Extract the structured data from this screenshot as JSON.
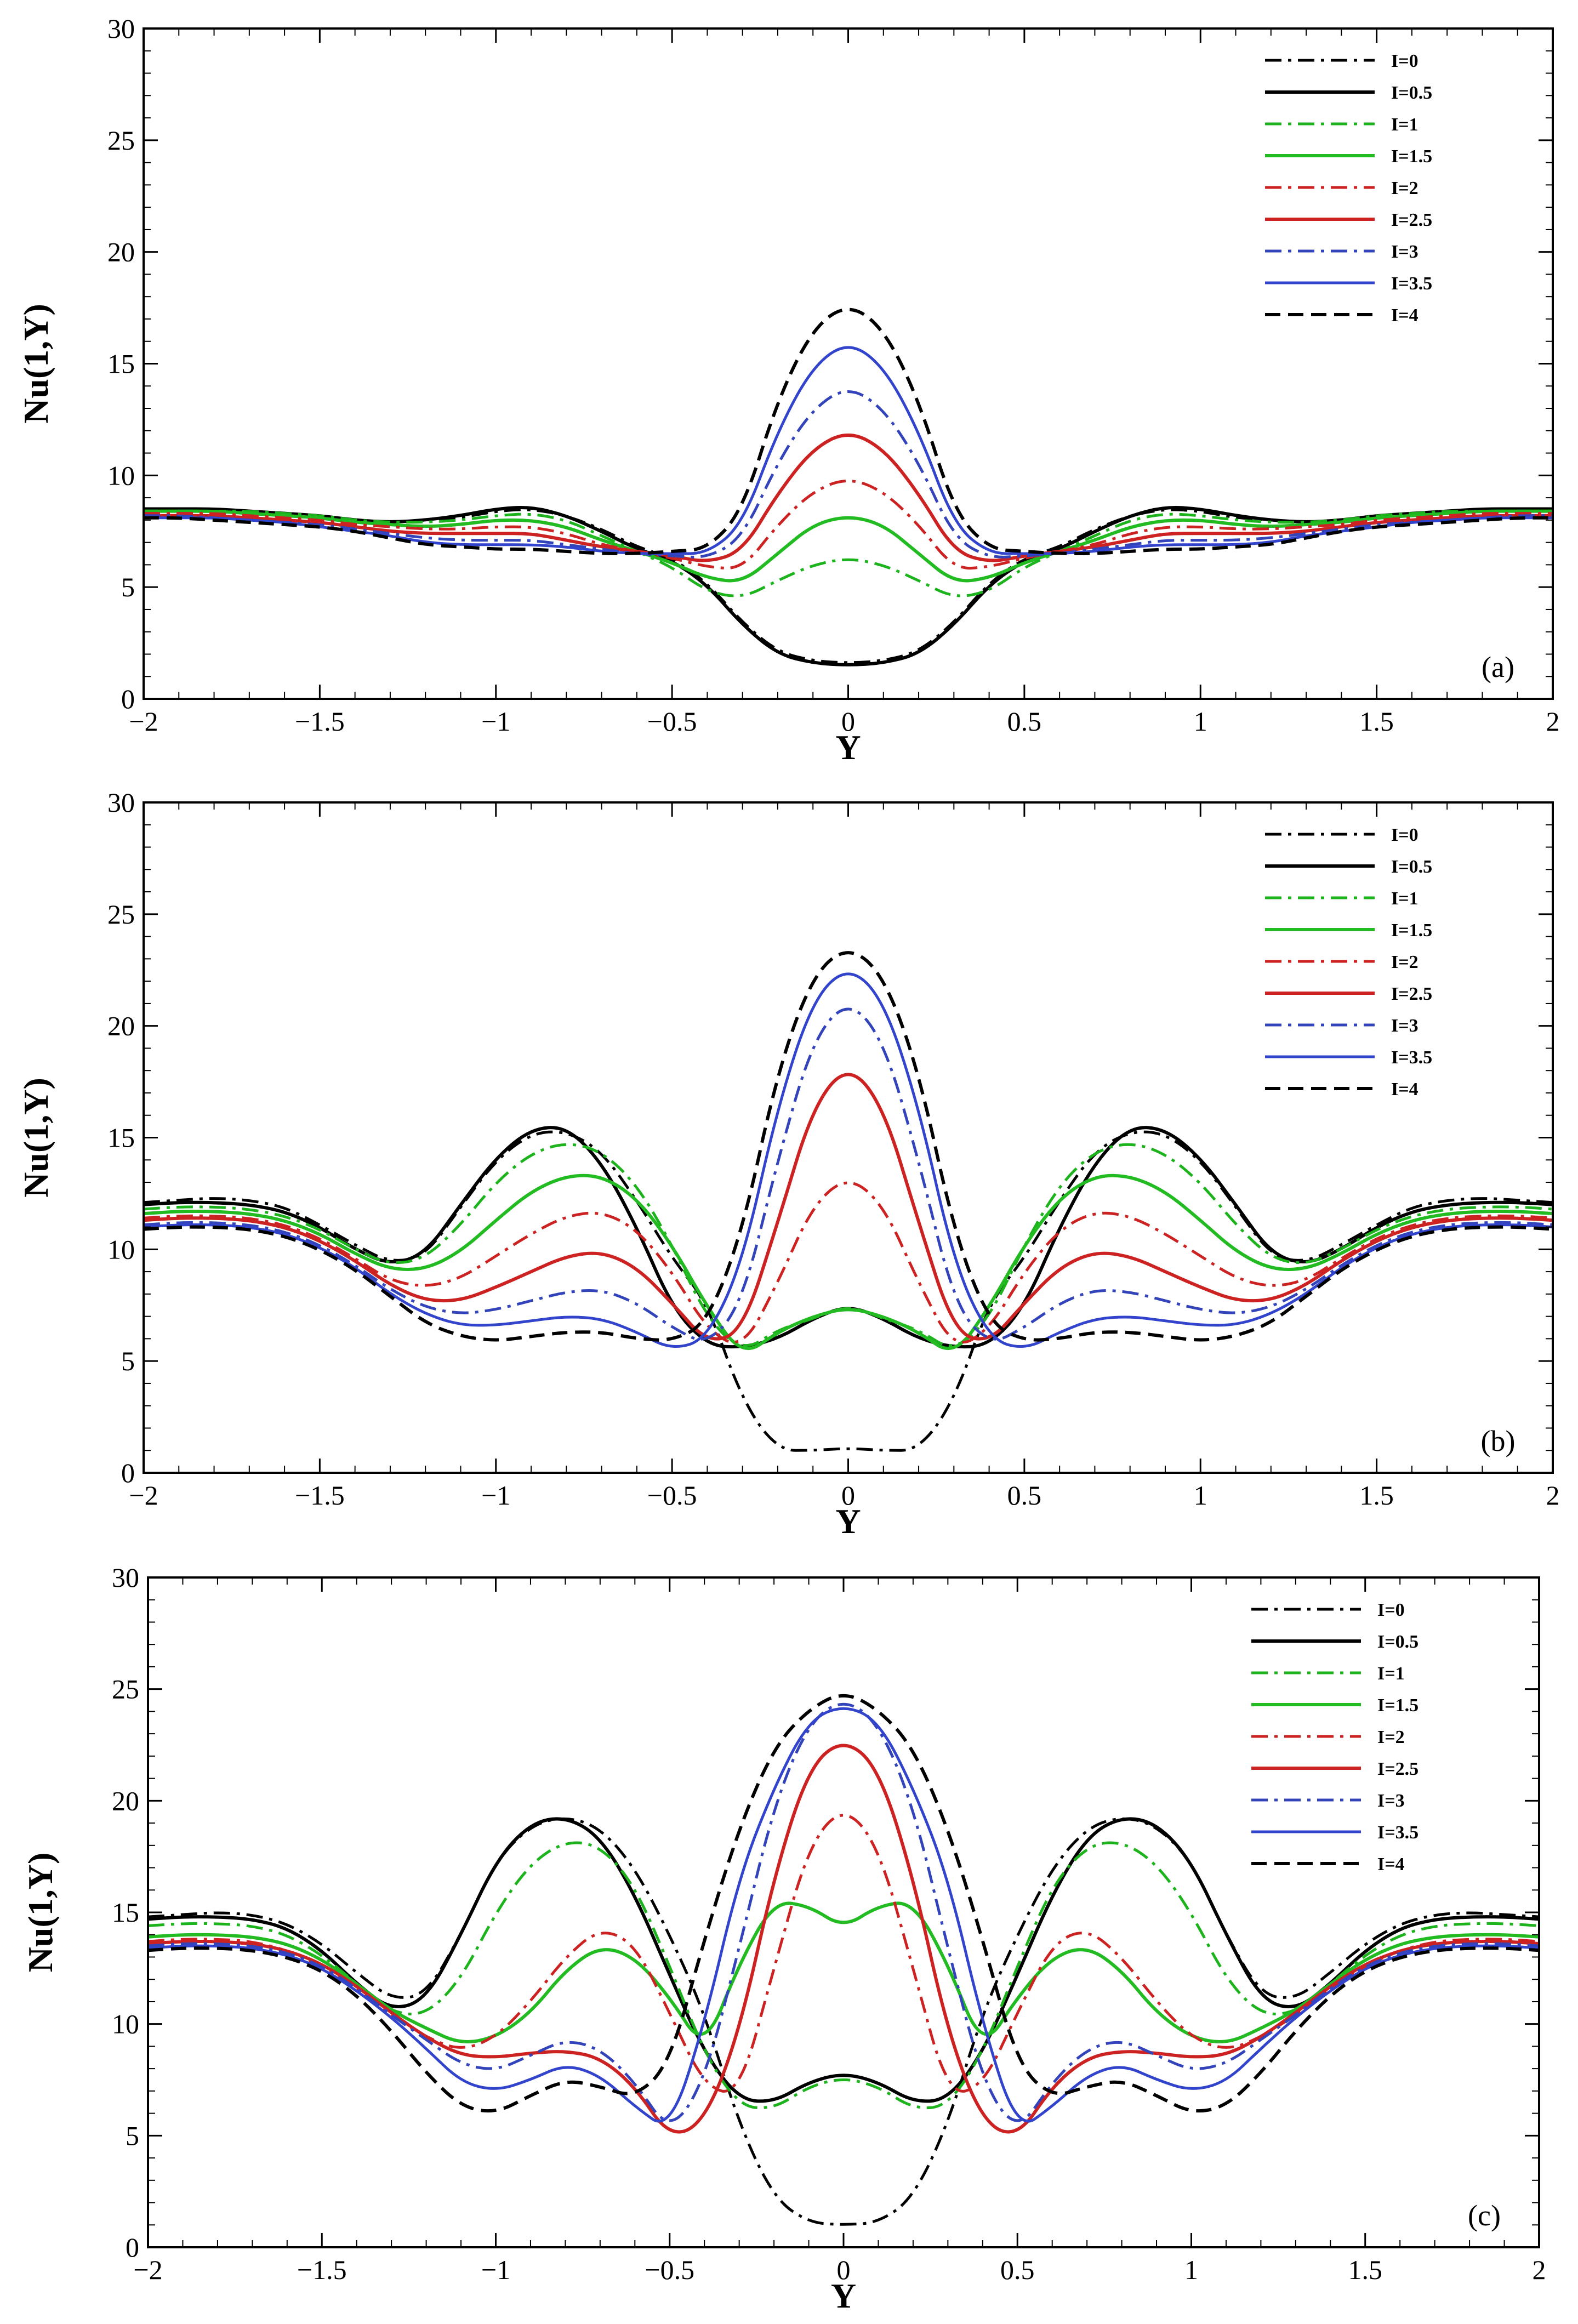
{
  "figure": {
    "panels": [
      {
        "id": "a",
        "tag": "(a)"
      },
      {
        "id": "b",
        "tag": "(b)"
      },
      {
        "id": "c",
        "tag": "(c)"
      }
    ],
    "series_styles": [
      {
        "name": "I=0",
        "color": "#000000",
        "dash": "dashdot",
        "width": 5
      },
      {
        "name": "I=0.5",
        "color": "#000000",
        "dash": "solid",
        "width": 6
      },
      {
        "name": "I=1",
        "color": "#1db31d",
        "dash": "dashdot",
        "width": 5
      },
      {
        "name": "I=1.5",
        "color": "#22bb22",
        "dash": "solid",
        "width": 6
      },
      {
        "name": "I=2",
        "color": "#cc2222",
        "dash": "dashdot",
        "width": 5
      },
      {
        "name": "I=2.5",
        "color": "#cc2222",
        "dash": "solid",
        "width": 6
      },
      {
        "name": "I=3",
        "color": "#3344bb",
        "dash": "dashdot",
        "width": 5
      },
      {
        "name": "I=3.5",
        "color": "#3344cc",
        "dash": "solid",
        "width": 5
      },
      {
        "name": "I=4",
        "color": "#000000",
        "dash": "dashed",
        "width": 6
      }
    ]
  },
  "chart_data": [
    {
      "type": "line",
      "tag": "(a)",
      "xlabel": "Y",
      "ylabel": "Nu(1,Y)",
      "xlim": [
        -2,
        2
      ],
      "ylim": [
        0,
        30
      ],
      "xticks": [
        -2,
        -1.5,
        -1,
        -0.5,
        0,
        0.5,
        1,
        1.5,
        2
      ],
      "xtick_labels": [
        "−2",
        "−1.5",
        "−1",
        "−0.5",
        "0",
        "0.5",
        "1",
        "1.5",
        "2"
      ],
      "yticks": [
        0,
        5,
        10,
        15,
        20,
        25,
        30
      ],
      "ytick_labels": [
        "0",
        "5",
        "10",
        "15",
        "20",
        "25",
        "30"
      ],
      "legend_position": "top-right",
      "x": [
        0,
        0.1,
        0.2,
        0.3,
        0.4,
        0.5,
        0.6,
        0.7,
        0.8,
        0.9,
        1.0,
        1.1,
        1.2,
        1.3,
        1.4,
        1.5,
        1.6,
        1.7,
        1.8,
        1.9,
        2.0
      ],
      "symmetric": true,
      "series": [
        {
          "name": "I=0",
          "values": [
            1.6,
            1.7,
            2.1,
            3.4,
            5.2,
            6.3,
            6.8,
            7.6,
            8.2,
            8.5,
            8.4,
            8.1,
            8.0,
            7.9,
            8.0,
            8.2,
            8.3,
            8.4,
            8.5,
            8.5,
            8.5
          ]
        },
        {
          "name": "I=0.5",
          "values": [
            1.5,
            1.6,
            2.0,
            3.3,
            5.1,
            6.2,
            6.7,
            7.5,
            8.2,
            8.6,
            8.5,
            8.2,
            8.0,
            7.9,
            8.0,
            8.2,
            8.3,
            8.4,
            8.5,
            8.5,
            8.5
          ]
        },
        {
          "name": "I=1",
          "values": [
            6.3,
            6.0,
            5.3,
            4.5,
            4.8,
            5.9,
            6.6,
            7.3,
            8.0,
            8.3,
            8.2,
            8.0,
            7.9,
            7.9,
            8.0,
            8.2,
            8.3,
            8.4,
            8.4,
            8.4,
            8.4
          ]
        },
        {
          "name": "I=1.5",
          "values": [
            8.2,
            7.8,
            6.5,
            5.2,
            5.4,
            6.1,
            6.6,
            7.1,
            7.7,
            8.0,
            8.0,
            7.8,
            7.7,
            7.8,
            7.9,
            8.1,
            8.2,
            8.3,
            8.4,
            8.4,
            8.4
          ]
        },
        {
          "name": "I=2",
          "values": [
            9.9,
            9.3,
            7.8,
            5.8,
            5.9,
            6.3,
            6.6,
            6.9,
            7.4,
            7.7,
            7.7,
            7.6,
            7.6,
            7.7,
            7.8,
            8.0,
            8.1,
            8.2,
            8.3,
            8.3,
            8.3
          ]
        },
        {
          "name": "I=2.5",
          "values": [
            12.0,
            11.2,
            9.2,
            6.6,
            6.1,
            6.4,
            6.6,
            6.8,
            7.1,
            7.4,
            7.4,
            7.4,
            7.4,
            7.5,
            7.7,
            7.9,
            8.0,
            8.1,
            8.2,
            8.2,
            8.2
          ]
        },
        {
          "name": "I=3",
          "values": [
            14.0,
            13.0,
            10.6,
            7.2,
            6.3,
            6.4,
            6.5,
            6.7,
            6.9,
            7.1,
            7.1,
            7.1,
            7.2,
            7.4,
            7.6,
            7.8,
            7.9,
            8.0,
            8.1,
            8.2,
            8.2
          ]
        },
        {
          "name": "I=3.5",
          "values": [
            16.0,
            14.9,
            12.0,
            7.8,
            6.5,
            6.5,
            6.5,
            6.6,
            6.8,
            6.9,
            6.9,
            6.9,
            7.0,
            7.3,
            7.5,
            7.7,
            7.9,
            8.0,
            8.1,
            8.1,
            8.1
          ]
        },
        {
          "name": "I=4",
          "values": [
            17.7,
            16.6,
            13.4,
            8.4,
            6.7,
            6.6,
            6.5,
            6.5,
            6.6,
            6.7,
            6.7,
            6.8,
            6.9,
            7.2,
            7.5,
            7.7,
            7.8,
            7.9,
            8.0,
            8.1,
            8.1
          ]
        }
      ]
    },
    {
      "type": "line",
      "tag": "(b)",
      "xlabel": "Y",
      "ylabel": "Nu(1,Y)",
      "xlim": [
        -2,
        2
      ],
      "ylim": [
        0,
        30
      ],
      "xticks": [
        -2,
        -1.5,
        -1,
        -0.5,
        0,
        0.5,
        1,
        1.5,
        2
      ],
      "xtick_labels": [
        "−2",
        "−1.5",
        "−1",
        "−0.5",
        "0",
        "0.5",
        "1",
        "1.5",
        "2"
      ],
      "yticks": [
        0,
        5,
        10,
        15,
        20,
        25,
        30
      ],
      "ytick_labels": [
        "0",
        "5",
        "10",
        "15",
        "20",
        "25",
        "30"
      ],
      "legend_position": "top-right",
      "x": [
        0,
        0.1,
        0.2,
        0.3,
        0.4,
        0.5,
        0.6,
        0.7,
        0.8,
        0.9,
        1.0,
        1.1,
        1.2,
        1.3,
        1.4,
        1.5,
        1.6,
        1.7,
        1.8,
        1.9,
        2.0
      ],
      "symmetric": true,
      "series": [
        {
          "name": "I=0",
          "values": [
            1.1,
            1.0,
            1.0,
            3.2,
            7.6,
            9.6,
            12.2,
            14.4,
            15.3,
            15.2,
            14.0,
            11.9,
            9.7,
            9.4,
            10.2,
            11.1,
            11.9,
            12.2,
            12.3,
            12.2,
            12.1
          ]
        },
        {
          "name": "I=0.5",
          "values": [
            7.5,
            6.9,
            6.0,
            5.6,
            5.7,
            7.4,
            11.0,
            13.9,
            15.5,
            15.4,
            14.1,
            12.0,
            9.8,
            9.3,
            10.0,
            11.0,
            11.7,
            12.0,
            12.1,
            12.1,
            12.0
          ]
        },
        {
          "name": "I=1",
          "values": [
            7.5,
            6.9,
            6.4,
            5.4,
            6.9,
            10.2,
            12.9,
            14.4,
            14.8,
            14.3,
            13.0,
            11.1,
            9.6,
            9.3,
            10.0,
            10.9,
            11.5,
            11.8,
            11.9,
            11.9,
            11.8
          ]
        },
        {
          "name": "I=1.5",
          "values": [
            7.4,
            7.0,
            6.3,
            5.2,
            7.4,
            10.2,
            12.3,
            13.3,
            13.3,
            12.6,
            11.3,
            9.9,
            9.1,
            9.1,
            9.8,
            10.7,
            11.3,
            11.6,
            11.7,
            11.7,
            11.6
          ]
        },
        {
          "name": "I=2",
          "values": [
            13.3,
            12.0,
            8.5,
            5.5,
            6.4,
            9.0,
            10.9,
            11.7,
            11.5,
            10.7,
            9.7,
            8.7,
            8.3,
            8.6,
            9.6,
            10.5,
            11.1,
            11.4,
            11.5,
            11.5,
            11.4
          ]
        },
        {
          "name": "I=2.5",
          "values": [
            18.3,
            16.4,
            11.2,
            6.3,
            5.8,
            7.6,
            9.2,
            9.9,
            9.7,
            9.0,
            8.3,
            7.7,
            7.7,
            8.4,
            9.5,
            10.4,
            11.0,
            11.3,
            11.4,
            11.4,
            11.3
          ]
        },
        {
          "name": "I=3",
          "values": [
            21.2,
            19.4,
            14.0,
            7.6,
            5.7,
            6.5,
            7.6,
            8.2,
            8.1,
            7.7,
            7.3,
            7.1,
            7.4,
            8.2,
            9.3,
            10.2,
            10.8,
            11.1,
            11.2,
            11.2,
            11.1
          ]
        },
        {
          "name": "I=3.5",
          "values": [
            22.7,
            21.2,
            16.4,
            9.4,
            6.0,
            5.5,
            6.3,
            6.9,
            7.0,
            6.8,
            6.6,
            6.6,
            7.1,
            8.0,
            9.2,
            10.1,
            10.7,
            11.0,
            11.1,
            11.1,
            11.0
          ]
        },
        {
          "name": "I=4",
          "values": [
            23.6,
            22.3,
            18.0,
            10.8,
            6.7,
            5.9,
            6.0,
            6.3,
            6.3,
            6.1,
            5.9,
            6.1,
            6.7,
            7.9,
            9.1,
            10.0,
            10.6,
            10.9,
            11.0,
            11.0,
            10.9
          ]
        }
      ]
    },
    {
      "type": "line",
      "tag": "(c)",
      "xlabel": "Y",
      "ylabel": "Nu(1,Y)",
      "xlim": [
        -2,
        2
      ],
      "ylim": [
        0,
        30
      ],
      "xticks": [
        -2,
        -1.5,
        -1,
        -0.5,
        0,
        0.5,
        1,
        1.5,
        2
      ],
      "xtick_labels": [
        "−2",
        "−1.5",
        "−1",
        "−0.5",
        "0",
        "0.5",
        "1",
        "1.5",
        "2"
      ],
      "yticks": [
        0,
        5,
        10,
        15,
        20,
        25,
        30
      ],
      "ytick_labels": [
        "0",
        "5",
        "10",
        "15",
        "20",
        "25",
        "30"
      ],
      "legend_position": "top-right",
      "x": [
        0,
        0.1,
        0.2,
        0.3,
        0.4,
        0.5,
        0.6,
        0.7,
        0.8,
        0.9,
        1.0,
        1.1,
        1.2,
        1.3,
        1.4,
        1.5,
        1.6,
        1.7,
        1.8,
        1.9,
        2.0
      ],
      "symmetric": true,
      "series": [
        {
          "name": "I=0",
          "values": [
            1.0,
            1.1,
            2.2,
            5.5,
            10.5,
            14.0,
            17.0,
            18.8,
            19.3,
            18.9,
            17.3,
            14.0,
            11.3,
            11.1,
            12.3,
            13.6,
            14.5,
            14.9,
            15.0,
            14.9,
            14.8
          ]
        },
        {
          "name": "I=0.5",
          "values": [
            7.8,
            7.4,
            6.5,
            6.6,
            8.7,
            12.2,
            15.8,
            18.4,
            19.3,
            19.0,
            17.3,
            14.0,
            11.1,
            10.6,
            11.8,
            13.3,
            14.3,
            14.7,
            14.8,
            14.8,
            14.7
          ]
        },
        {
          "name": "I=1",
          "values": [
            7.6,
            7.2,
            6.2,
            6.3,
            8.7,
            12.6,
            16.2,
            18.0,
            18.2,
            17.2,
            15.0,
            12.0,
            10.4,
            10.5,
            11.8,
            13.1,
            14.0,
            14.4,
            14.5,
            14.5,
            14.4
          ]
        },
        {
          "name": "I=1.5",
          "values": [
            14.3,
            15.3,
            15.5,
            12.7,
            8.8,
            11.2,
            13.0,
            13.5,
            12.4,
            10.5,
            9.4,
            9.1,
            9.8,
            10.6,
            11.8,
            12.9,
            13.6,
            13.9,
            14.0,
            14.0,
            13.9
          ]
        },
        {
          "name": "I=2",
          "values": [
            19.8,
            18.0,
            12.5,
            6.8,
            7.2,
            10.5,
            13.6,
            14.3,
            13.0,
            11.0,
            9.4,
            8.8,
            9.4,
            10.4,
            11.6,
            12.6,
            13.3,
            13.7,
            13.8,
            13.8,
            13.7
          ]
        },
        {
          "name": "I=2.5",
          "values": [
            22.8,
            21.5,
            16.6,
            9.6,
            5.6,
            4.9,
            7.2,
            8.5,
            8.8,
            8.7,
            8.5,
            8.6,
            9.4,
            10.5,
            11.7,
            12.7,
            13.3,
            13.6,
            13.7,
            13.7,
            13.6
          ]
        },
        {
          "name": "I=3",
          "values": [
            24.6,
            23.5,
            19.8,
            13.4,
            7.4,
            5.1,
            7.4,
            8.9,
            9.3,
            8.6,
            7.9,
            8.2,
            9.3,
            10.4,
            11.6,
            12.6,
            13.2,
            13.5,
            13.6,
            13.6,
            13.5
          ]
        },
        {
          "name": "I=3.5",
          "values": [
            24.3,
            23.6,
            20.6,
            16.6,
            10.0,
            5.2,
            6.3,
            7.7,
            8.2,
            7.5,
            7.0,
            7.4,
            8.9,
            10.3,
            11.5,
            12.5,
            13.1,
            13.4,
            13.5,
            13.5,
            13.4
          ]
        },
        {
          "name": "I=4",
          "values": [
            24.9,
            24.1,
            22.4,
            18.8,
            13.8,
            8.2,
            6.7,
            7.2,
            7.5,
            6.8,
            6.0,
            6.3,
            7.8,
            9.7,
            11.3,
            12.4,
            13.0,
            13.3,
            13.4,
            13.4,
            13.3
          ]
        }
      ]
    }
  ]
}
